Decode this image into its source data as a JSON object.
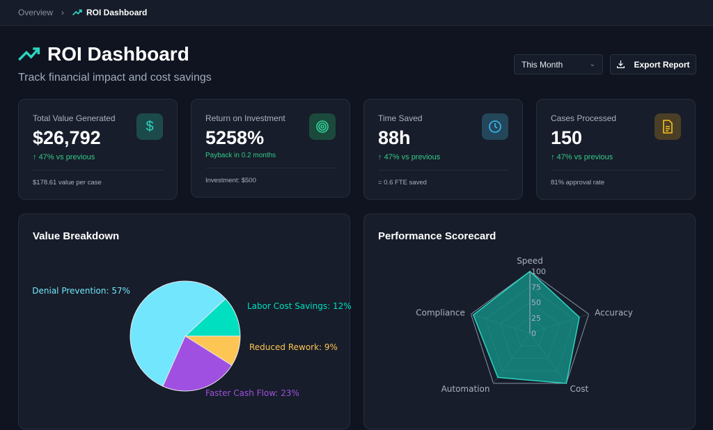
{
  "breadcrumb": {
    "items": [
      "Overview",
      "ROI Dashboard"
    ]
  },
  "header": {
    "title": "ROI Dashboard",
    "subtitle": "Track financial impact and cost savings",
    "period_select": "This Month",
    "export_label": "Export Report"
  },
  "cards": [
    {
      "label": "Total Value Generated",
      "value": "$26,792",
      "change": "47% vs previous",
      "footer": "$178.61 value per case",
      "icon": "dollar-icon",
      "color": "#2dd4bf"
    },
    {
      "label": "Return on Investment",
      "value": "5258%",
      "change": "Payback in 0.2 months",
      "footer": "Investment: $500",
      "icon": "target-icon",
      "color": "#34d399"
    },
    {
      "label": "Time Saved",
      "value": "88h",
      "change": "47% vs previous",
      "footer": "= 0.6 FTE saved",
      "icon": "clock-icon",
      "color": "#38bdf8"
    },
    {
      "label": "Cases Processed",
      "value": "150",
      "change": "47% vs previous",
      "footer": "81% approval rate",
      "icon": "document-icon",
      "color": "#fbbf24"
    }
  ],
  "chart_data": [
    {
      "type": "pie",
      "title": "Value Breakdown",
      "slices": [
        {
          "label": "Labor Cost Savings: 12%",
          "value": 12,
          "color": "#00e0c0"
        },
        {
          "label": "Denial Prevention: 57%",
          "value": 57,
          "color": "#72e6fc"
        },
        {
          "label": "Faster Cash Flow: 23%",
          "value": 23,
          "color": "#a050e0"
        },
        {
          "label": "Reduced Rework: 9%",
          "value": 9,
          "color": "#fdc553"
        }
      ]
    },
    {
      "type": "radar",
      "title": "Performance Scorecard",
      "axes": [
        "Speed",
        "Accuracy",
        "Cost",
        "Automation",
        "Compliance"
      ],
      "values": [
        100,
        84,
        100,
        88,
        96
      ],
      "ticks": [
        "0",
        "25",
        "50",
        "75",
        "100"
      ],
      "range": [
        0,
        100
      ],
      "color": "#14b8a6"
    }
  ]
}
